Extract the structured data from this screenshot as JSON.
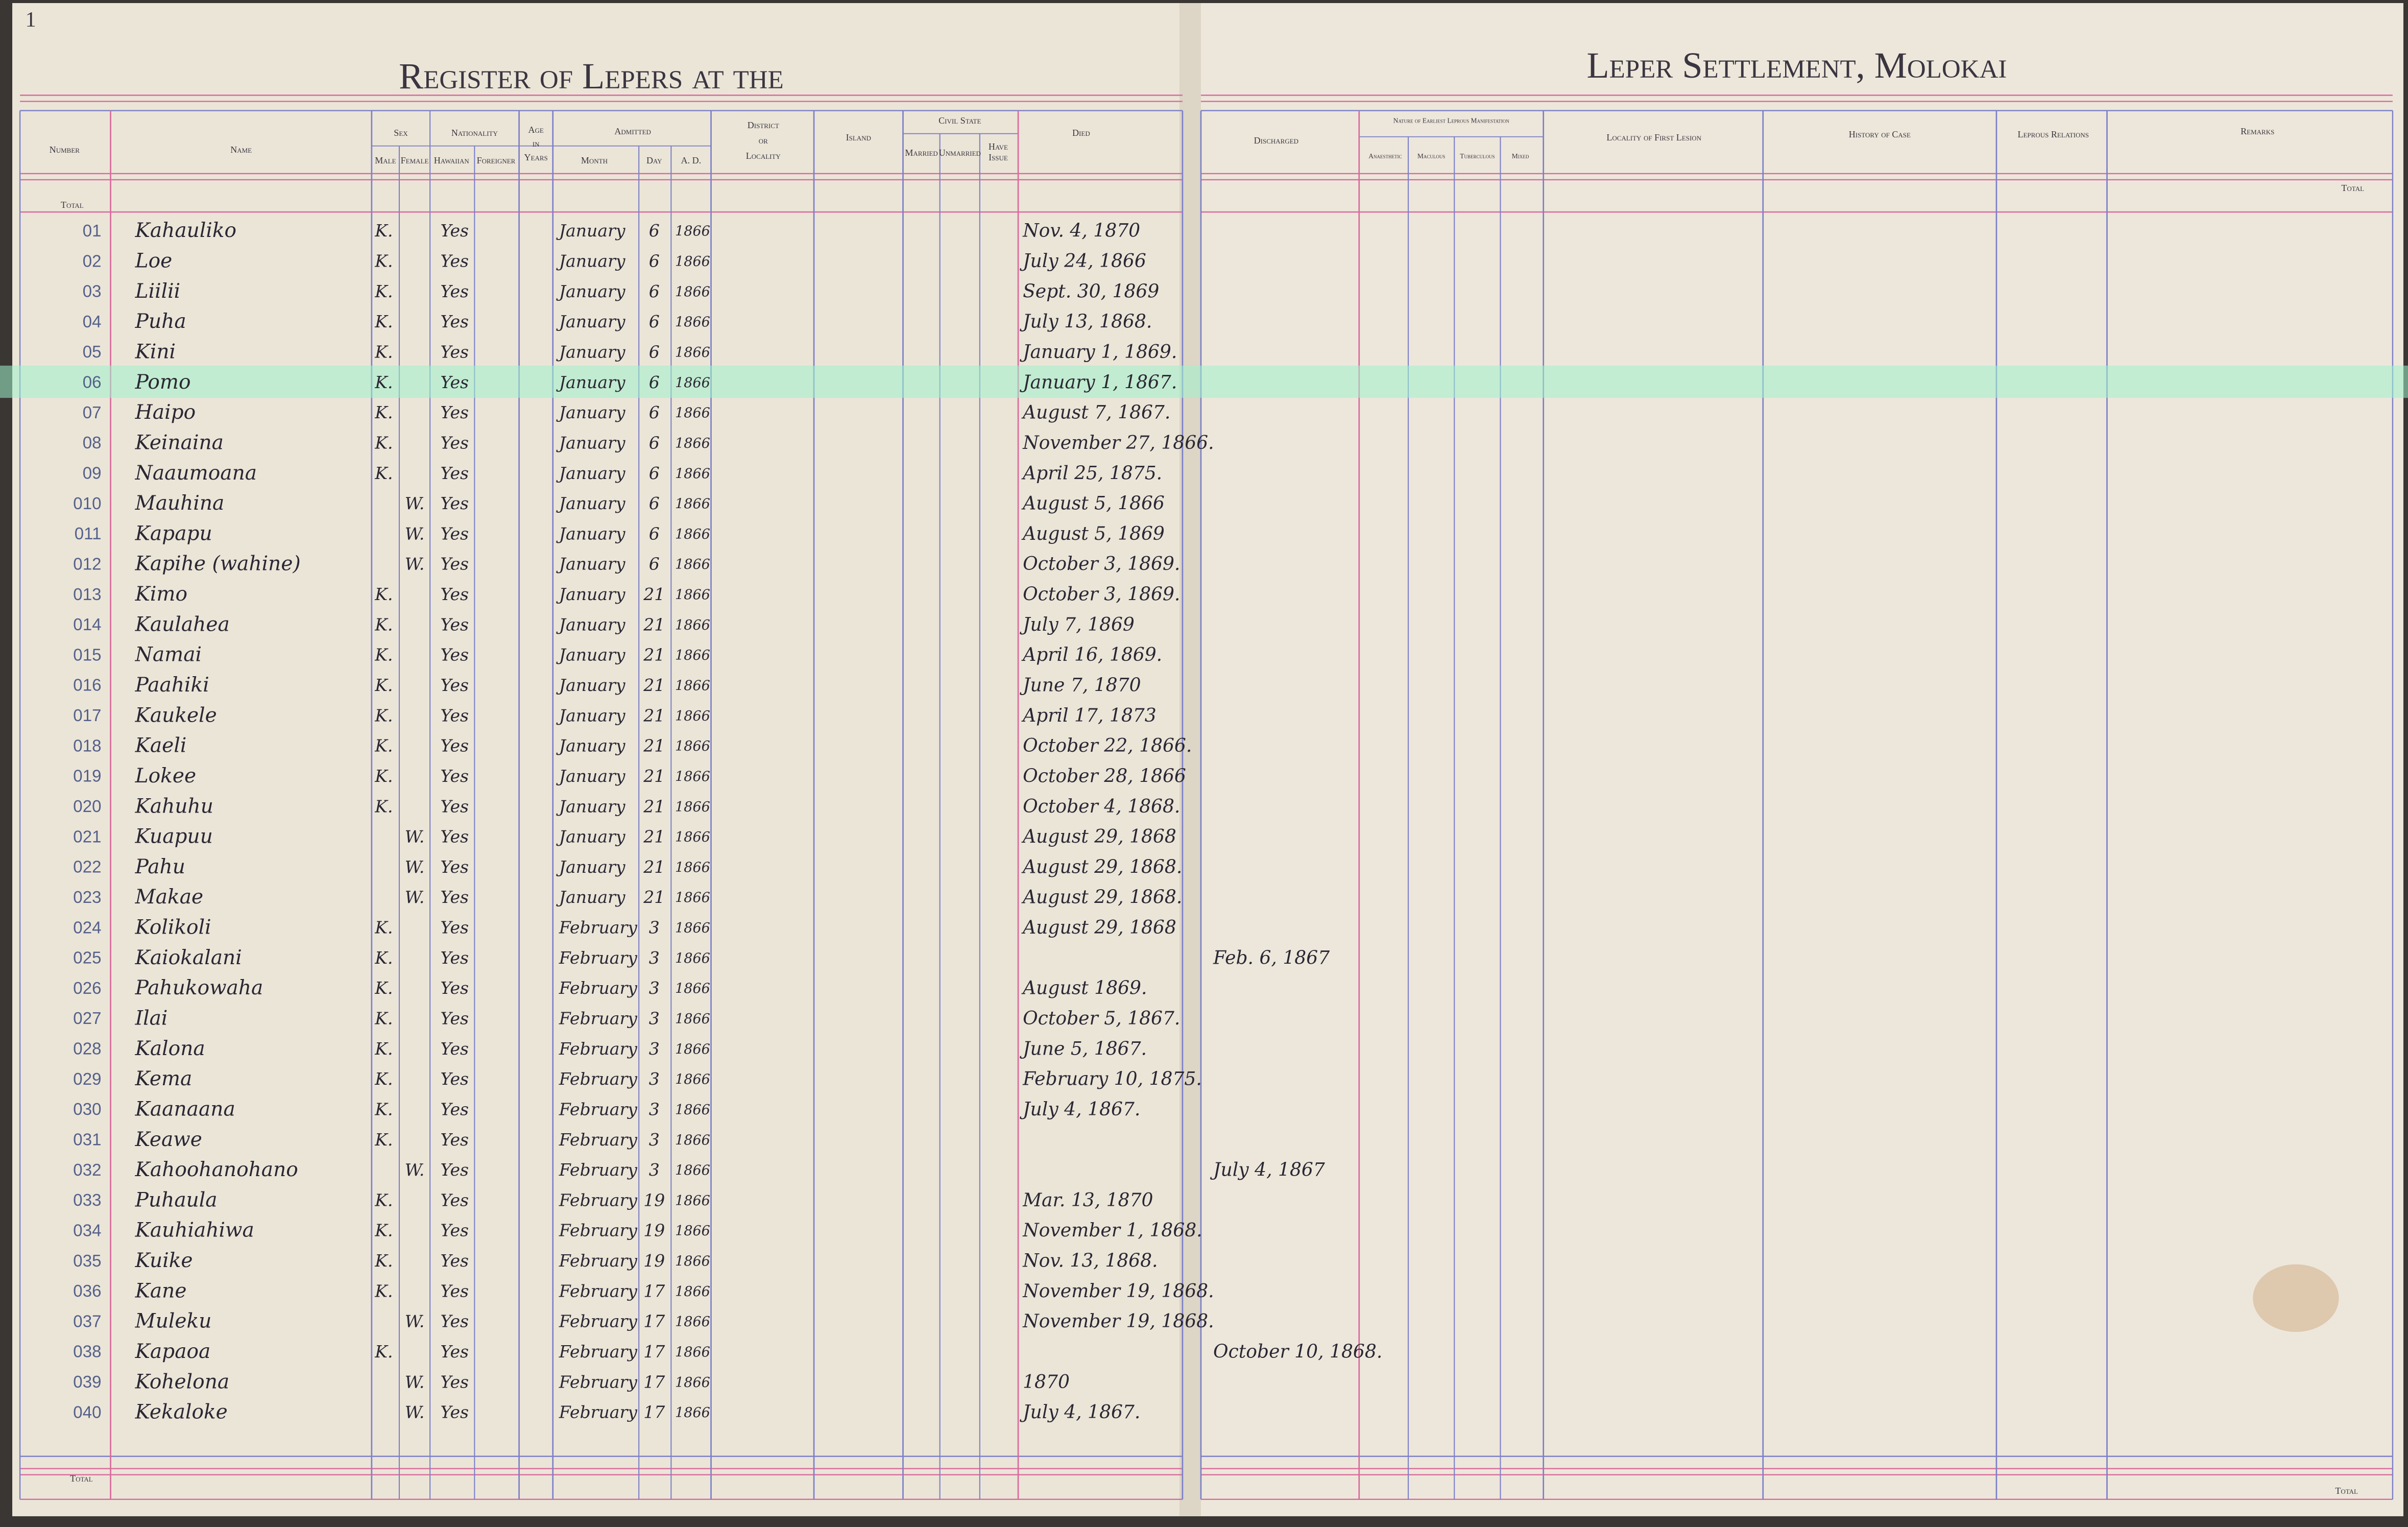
{
  "page_number": "1",
  "title_left": "Register of Lepers at the",
  "title_right": "Leper Settlement, Molokai",
  "columns": {
    "number": "Number",
    "name": "Name",
    "sex": "Sex",
    "male": "Male",
    "female": "Female",
    "nationality": "Nationality",
    "hawaiian": "Hawaiian",
    "foreigner": "Foreigner",
    "age": [
      "Age",
      "in",
      "Years"
    ],
    "admitted": "Admitted",
    "month": "Month",
    "day": "Day",
    "year": "A. D.",
    "district": [
      "District",
      "or",
      "Locality"
    ],
    "island": "Island",
    "civil_state": "Civil State",
    "married": "Married",
    "unmarried": "Unmarried",
    "have_issue": [
      "Have",
      "Issue"
    ],
    "died": "Died",
    "discharged": "Discharged",
    "nature": "Nature of Earliest Leprous Manifestation",
    "anaesthetic": "Anaesthetic",
    "maculous": "Maculous",
    "tuberculous": "Tuberculous",
    "mixed": "Mixed",
    "locality_lesion": "Locality of First Lesion",
    "history": "History of Case",
    "relations": "Leprous Relations",
    "remarks": "Remarks"
  },
  "totals": [
    "Total",
    "Total",
    "Total",
    "Total"
  ],
  "rows": [
    {
      "number": "01",
      "name": "Kahauliko",
      "male": "K.",
      "nationality": "Yes",
      "month": "January",
      "day": "6",
      "year": "1866",
      "died": "Nov. 4, 1870"
    },
    {
      "number": "02",
      "name": "Loe",
      "male": "K.",
      "nationality": "Yes",
      "month": "January",
      "day": "6",
      "year": "1866",
      "died": "July 24, 1866"
    },
    {
      "number": "03",
      "name": "Liilii",
      "male": "K.",
      "nationality": "Yes",
      "month": "January",
      "day": "6",
      "year": "1866",
      "died": "Sept. 30, 1869"
    },
    {
      "number": "04",
      "name": "Puha",
      "male": "K.",
      "nationality": "Yes",
      "month": "January",
      "day": "6",
      "year": "1866",
      "died": "July 13, 1868."
    },
    {
      "number": "05",
      "name": "Kini",
      "male": "K.",
      "nationality": "Yes",
      "month": "January",
      "day": "6",
      "year": "1866",
      "died": "January 1, 1869."
    },
    {
      "number": "06",
      "name": "Pomo",
      "male": "K.",
      "nationality": "Yes",
      "month": "January",
      "day": "6",
      "year": "1866",
      "died": "January 1, 1867."
    },
    {
      "number": "07",
      "name": "Haipo",
      "male": "K.",
      "nationality": "Yes",
      "month": "January",
      "day": "6",
      "year": "1866",
      "died": "August 7, 1867."
    },
    {
      "number": "08",
      "name": "Keinaina",
      "male": "K.",
      "nationality": "Yes",
      "month": "January",
      "day": "6",
      "year": "1866",
      "died": "November 27, 1866."
    },
    {
      "number": "09",
      "name": "Naaumoana",
      "male": "K.",
      "nationality": "Yes",
      "month": "January",
      "day": "6",
      "year": "1866",
      "died": "April 25, 1875."
    },
    {
      "number": "010",
      "name": "Mauhina",
      "female": "W.",
      "nationality": "Yes",
      "month": "January",
      "day": "6",
      "year": "1866",
      "died": "August 5, 1866"
    },
    {
      "number": "011",
      "name": "Kapapu",
      "female": "W.",
      "nationality": "Yes",
      "month": "January",
      "day": "6",
      "year": "1866",
      "died": "August 5, 1869"
    },
    {
      "number": "012",
      "name": "Kapihe (wahine)",
      "female": "W.",
      "nationality": "Yes",
      "month": "January",
      "day": "6",
      "year": "1866",
      "died": "October 3, 1869."
    },
    {
      "number": "013",
      "name": "Kimo",
      "male": "K.",
      "nationality": "Yes",
      "month": "January",
      "day": "21",
      "year": "1866",
      "died": "October 3, 1869."
    },
    {
      "number": "014",
      "name": "Kaulahea",
      "male": "K.",
      "nationality": "Yes",
      "month": "January",
      "day": "21",
      "year": "1866",
      "died": "July 7, 1869"
    },
    {
      "number": "015",
      "name": "Namai",
      "male": "K.",
      "nationality": "Yes",
      "month": "January",
      "day": "21",
      "year": "1866",
      "died": "April 16, 1869."
    },
    {
      "number": "016",
      "name": "Paahiki",
      "male": "K.",
      "nationality": "Yes",
      "month": "January",
      "day": "21",
      "year": "1866",
      "died": "June 7, 1870"
    },
    {
      "number": "017",
      "name": "Kaukele",
      "male": "K.",
      "nationality": "Yes",
      "month": "January",
      "day": "21",
      "year": "1866",
      "died": "April 17, 1873"
    },
    {
      "number": "018",
      "name": "Kaeli",
      "male": "K.",
      "nationality": "Yes",
      "month": "January",
      "day": "21",
      "year": "1866",
      "died": "October 22, 1866."
    },
    {
      "number": "019",
      "name": "Lokee",
      "male": "K.",
      "nationality": "Yes",
      "month": "January",
      "day": "21",
      "year": "1866",
      "died": "October 28, 1866"
    },
    {
      "number": "020",
      "name": "Kahuhu",
      "male": "K.",
      "nationality": "Yes",
      "month": "January",
      "day": "21",
      "year": "1866",
      "died": "October 4, 1868."
    },
    {
      "number": "021",
      "name": "Kuapuu",
      "female": "W.",
      "nationality": "Yes",
      "month": "January",
      "day": "21",
      "year": "1866",
      "died": "August 29, 1868"
    },
    {
      "number": "022",
      "name": "Pahu",
      "female": "W.",
      "nationality": "Yes",
      "month": "January",
      "day": "21",
      "year": "1866",
      "died": "August 29, 1868."
    },
    {
      "number": "023",
      "name": "Makae",
      "female": "W.",
      "nationality": "Yes",
      "month": "January",
      "day": "21",
      "year": "1866",
      "died": "August 29, 1868."
    },
    {
      "number": "024",
      "name": "Kolikoli",
      "male": "K.",
      "nationality": "Yes",
      "month": "February",
      "day": "3",
      "year": "1866",
      "died": "August 29, 1868"
    },
    {
      "number": "025",
      "name": "Kaiokalani",
      "male": "K.",
      "nationality": "Yes",
      "month": "February",
      "day": "3",
      "year": "1866",
      "discharged": "Feb. 6, 1867"
    },
    {
      "number": "026",
      "name": "Pahukowaha",
      "male": "K.",
      "nationality": "Yes",
      "month": "February",
      "day": "3",
      "year": "1866",
      "died": "August 1869."
    },
    {
      "number": "027",
      "name": "Ilai",
      "male": "K.",
      "nationality": "Yes",
      "month": "February",
      "day": "3",
      "year": "1866",
      "died": "October 5, 1867."
    },
    {
      "number": "028",
      "name": "Kalona",
      "male": "K.",
      "nationality": "Yes",
      "month": "February",
      "day": "3",
      "year": "1866",
      "died": "June 5, 1867."
    },
    {
      "number": "029",
      "name": "Kema",
      "male": "K.",
      "nationality": "Yes",
      "month": "February",
      "day": "3",
      "year": "1866",
      "died": "February 10, 1875."
    },
    {
      "number": "030",
      "name": "Kaanaana",
      "male": "K.",
      "nationality": "Yes",
      "month": "February",
      "day": "3",
      "year": "1866",
      "died": "July 4, 1867."
    },
    {
      "number": "031",
      "name": "Keawe",
      "male": "K.",
      "nationality": "Yes",
      "month": "February",
      "day": "3",
      "year": "1866"
    },
    {
      "number": "032",
      "name": "Kahoohanohano",
      "female": "W.",
      "nationality": "Yes",
      "month": "February",
      "day": "3",
      "year": "1866",
      "discharged": "July 4, 1867"
    },
    {
      "number": "033",
      "name": "Puhaula",
      "male": "K.",
      "nationality": "Yes",
      "month": "February",
      "day": "19",
      "year": "1866",
      "died": "Mar. 13, 1870"
    },
    {
      "number": "034",
      "name": "Kauhiahiwa",
      "male": "K.",
      "nationality": "Yes",
      "month": "February",
      "day": "19",
      "year": "1866",
      "died": "November 1, 1868."
    },
    {
      "number": "035",
      "name": "Kuike",
      "male": "K.",
      "nationality": "Yes",
      "month": "February",
      "day": "19",
      "year": "1866",
      "died": "Nov. 13, 1868."
    },
    {
      "number": "036",
      "name": "Kane",
      "male": "K.",
      "nationality": "Yes",
      "month": "February",
      "day": "17",
      "year": "1866",
      "died": "November 19, 1868."
    },
    {
      "number": "037",
      "name": "Muleku",
      "female": "W.",
      "nationality": "Yes",
      "month": "February",
      "day": "17",
      "year": "1866",
      "died": "November 19, 1868."
    },
    {
      "number": "038",
      "name": "Kapaoa",
      "male": "K.",
      "nationality": "Yes",
      "month": "February",
      "day": "17",
      "year": "1866",
      "discharged": "October 10, 1868."
    },
    {
      "number": "039",
      "name": "Kohelona",
      "female": "W.",
      "nationality": "Yes",
      "month": "February",
      "day": "17",
      "year": "1866",
      "died": "1870"
    },
    {
      "number": "040",
      "name": "Kekaloke",
      "female": "W.",
      "nationality": "Yes",
      "month": "February",
      "day": "17",
      "year": "1866",
      "died": "July 4, 1867."
    }
  ]
}
